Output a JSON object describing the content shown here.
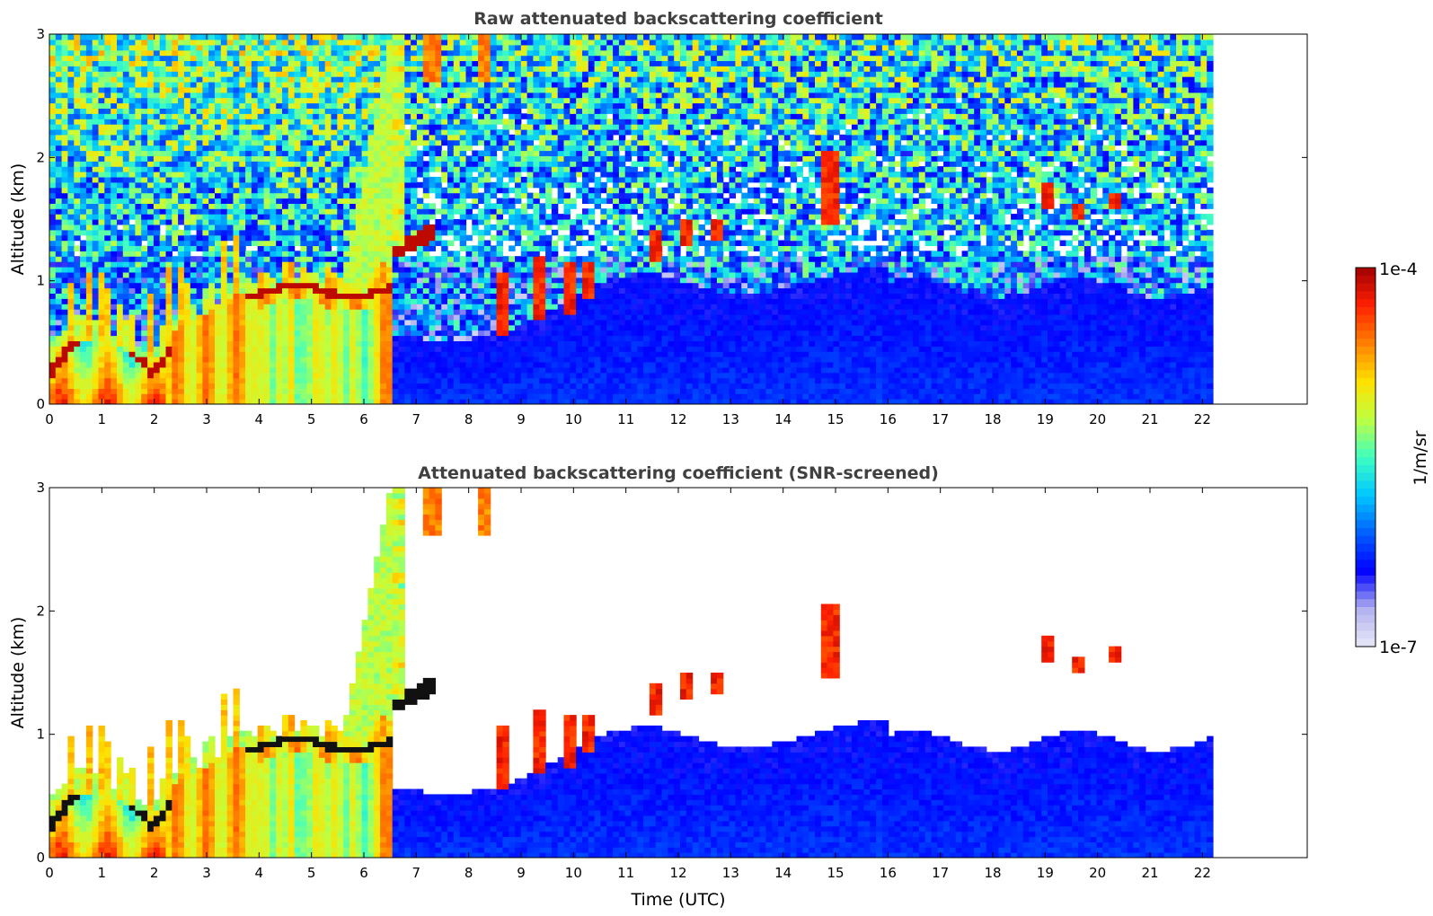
{
  "chart_data": [
    {
      "type": "heatmap",
      "title": "Raw attenuated backscattering coefficient",
      "xlabel": "",
      "ylabel": "Altitude (km)",
      "xlim": [
        0,
        24
      ],
      "ylim": [
        0,
        3
      ],
      "x_ticks": [
        "0",
        "1",
        "2",
        "3",
        "4",
        "5",
        "6",
        "7",
        "8",
        "9",
        "10",
        "11",
        "12",
        "13",
        "14",
        "15",
        "16",
        "17",
        "18",
        "19",
        "20",
        "21",
        "22"
      ],
      "y_ticks": [
        "0",
        "1",
        "2",
        "3"
      ],
      "data_end_hour": 22.2,
      "screened": false,
      "features": [
        {
          "name": "boundary layer aerosol",
          "t_start": 0,
          "t_end": 6.5,
          "alt_top_km": 1.0
        },
        {
          "name": "dense aerosol layer",
          "t_start": 6.5,
          "t_end": 7.3,
          "alt_km": 1.35
        },
        {
          "name": "clouds",
          "t_start": 8.5,
          "t_end": 13,
          "alt_km": 1.2
        },
        {
          "name": "clouds",
          "t_start": 14.8,
          "t_end": 15.0,
          "alt_km": 1.7
        },
        {
          "name": "clouds",
          "t_start": 19,
          "t_end": 20.4,
          "alt_km": 1.65
        }
      ]
    },
    {
      "type": "heatmap",
      "title": "Attenuated backscattering coefficient (SNR-screened)",
      "xlabel": "Time (UTC)",
      "ylabel": "Altitude (km)",
      "xlim": [
        0,
        24
      ],
      "ylim": [
        0,
        3
      ],
      "x_ticks": [
        "0",
        "1",
        "2",
        "3",
        "4",
        "5",
        "6",
        "7",
        "8",
        "9",
        "10",
        "11",
        "12",
        "13",
        "14",
        "15",
        "16",
        "17",
        "18",
        "19",
        "20",
        "21",
        "22"
      ],
      "y_ticks": [
        "0",
        "1",
        "2",
        "3"
      ],
      "data_end_hour": 22.2,
      "screened": true
    }
  ],
  "colorbar": {
    "label": "1/m/sr",
    "max_label": "1e-4",
    "min_label": "1e-7",
    "scale": "log",
    "range": [
      1e-07,
      0.0001
    ],
    "colormap": [
      "#e8e8f8",
      "#b0b0f0",
      "#0000ff",
      "#0060ff",
      "#00c8ff",
      "#40ffc0",
      "#c0ff40",
      "#ffe000",
      "#ff8000",
      "#ff2000",
      "#a00000"
    ]
  }
}
